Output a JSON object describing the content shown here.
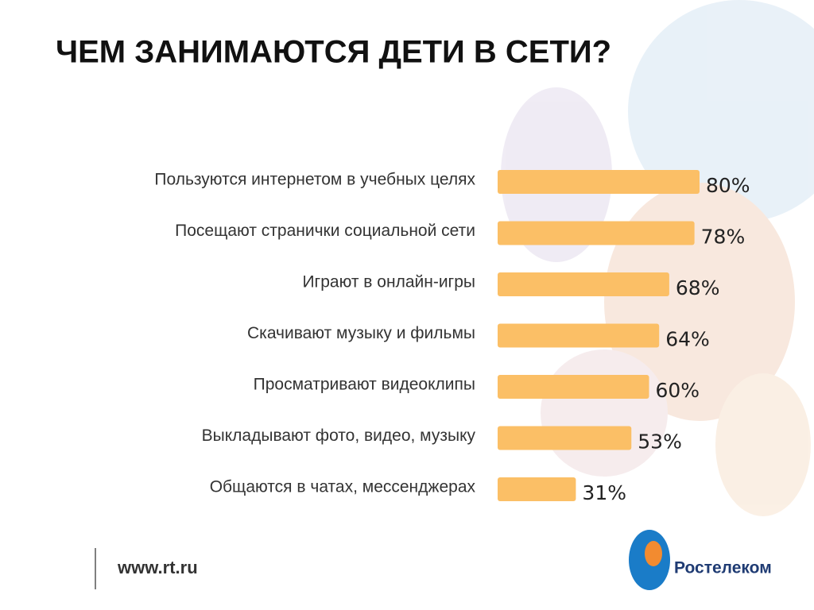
{
  "chart_data": {
    "type": "hbar",
    "title": "ЧЕМ ЗАНИМАЮТСЯ ДЕТИ В СЕТИ?",
    "categories": [
      "Пользуются интернетом в учебных целях",
      "Посещают странички социальной сети",
      "Играют в онлайн-игры",
      "Скачивают музыку и фильмы",
      "Просматривают видеоклипы",
      "Выкладывают фото, видео, музыку",
      "Общаются в чатах, мессенджерах"
    ],
    "values": [
      80,
      78,
      68,
      64,
      60,
      53,
      31
    ],
    "value_labels": [
      "80%",
      "78%",
      "68%",
      "64%",
      "60%",
      "53%",
      "31%"
    ],
    "color": "#fbbf66",
    "xlim": [
      0,
      100
    ]
  },
  "footer": {
    "url": "www.rt.ru",
    "brand": "Ростелеком"
  }
}
